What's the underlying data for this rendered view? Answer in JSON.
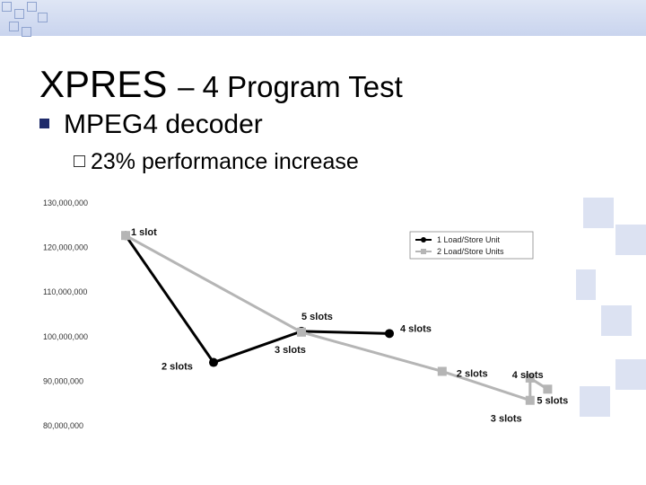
{
  "slide": {
    "title": "XPRES",
    "title_suffix": "– 4 Program Test",
    "bullet_level1": "MPEG4 decoder",
    "bullet_level2": "23% performance increase"
  },
  "chart_data": {
    "type": "line",
    "title": "",
    "xlabel": "",
    "ylabel": "",
    "yticks": [
      "130,000,000",
      "120,000,000",
      "110,000,000",
      "100,000,000",
      "90,000,000",
      "80,000,000"
    ],
    "ylim": [
      80000000,
      130000000
    ],
    "grid": false,
    "legend_position": "top-right",
    "series": [
      {
        "name": "1 Load/Store Unit",
        "color": "#000000",
        "marker": "circle",
        "points": [
          {
            "x": 1,
            "y": 122500000,
            "label": "1 slot"
          },
          {
            "x": 2,
            "y": 94000000,
            "label": "2 slots"
          },
          {
            "x": 3,
            "y": 101000000,
            "label": "3 slots"
          },
          {
            "x": 4,
            "y": 100500000,
            "label": "4 slots"
          }
        ]
      },
      {
        "name": "2 Load/Store Units",
        "color": "#b5b5b5",
        "marker": "square",
        "points": [
          {
            "x": 1,
            "y": 122500000,
            "label": ""
          },
          {
            "x": 3,
            "y": 100800000,
            "label": "5 slots"
          },
          {
            "x": 4.6,
            "y": 92000000,
            "label": "2 slots"
          },
          {
            "x": 5.6,
            "y": 85500000,
            "label": "3 slots"
          },
          {
            "x": 5.6,
            "y": 90500000,
            "label": "4 slots"
          },
          {
            "x": 5.8,
            "y": 88000000,
            "label": "5 slots"
          }
        ]
      }
    ]
  }
}
